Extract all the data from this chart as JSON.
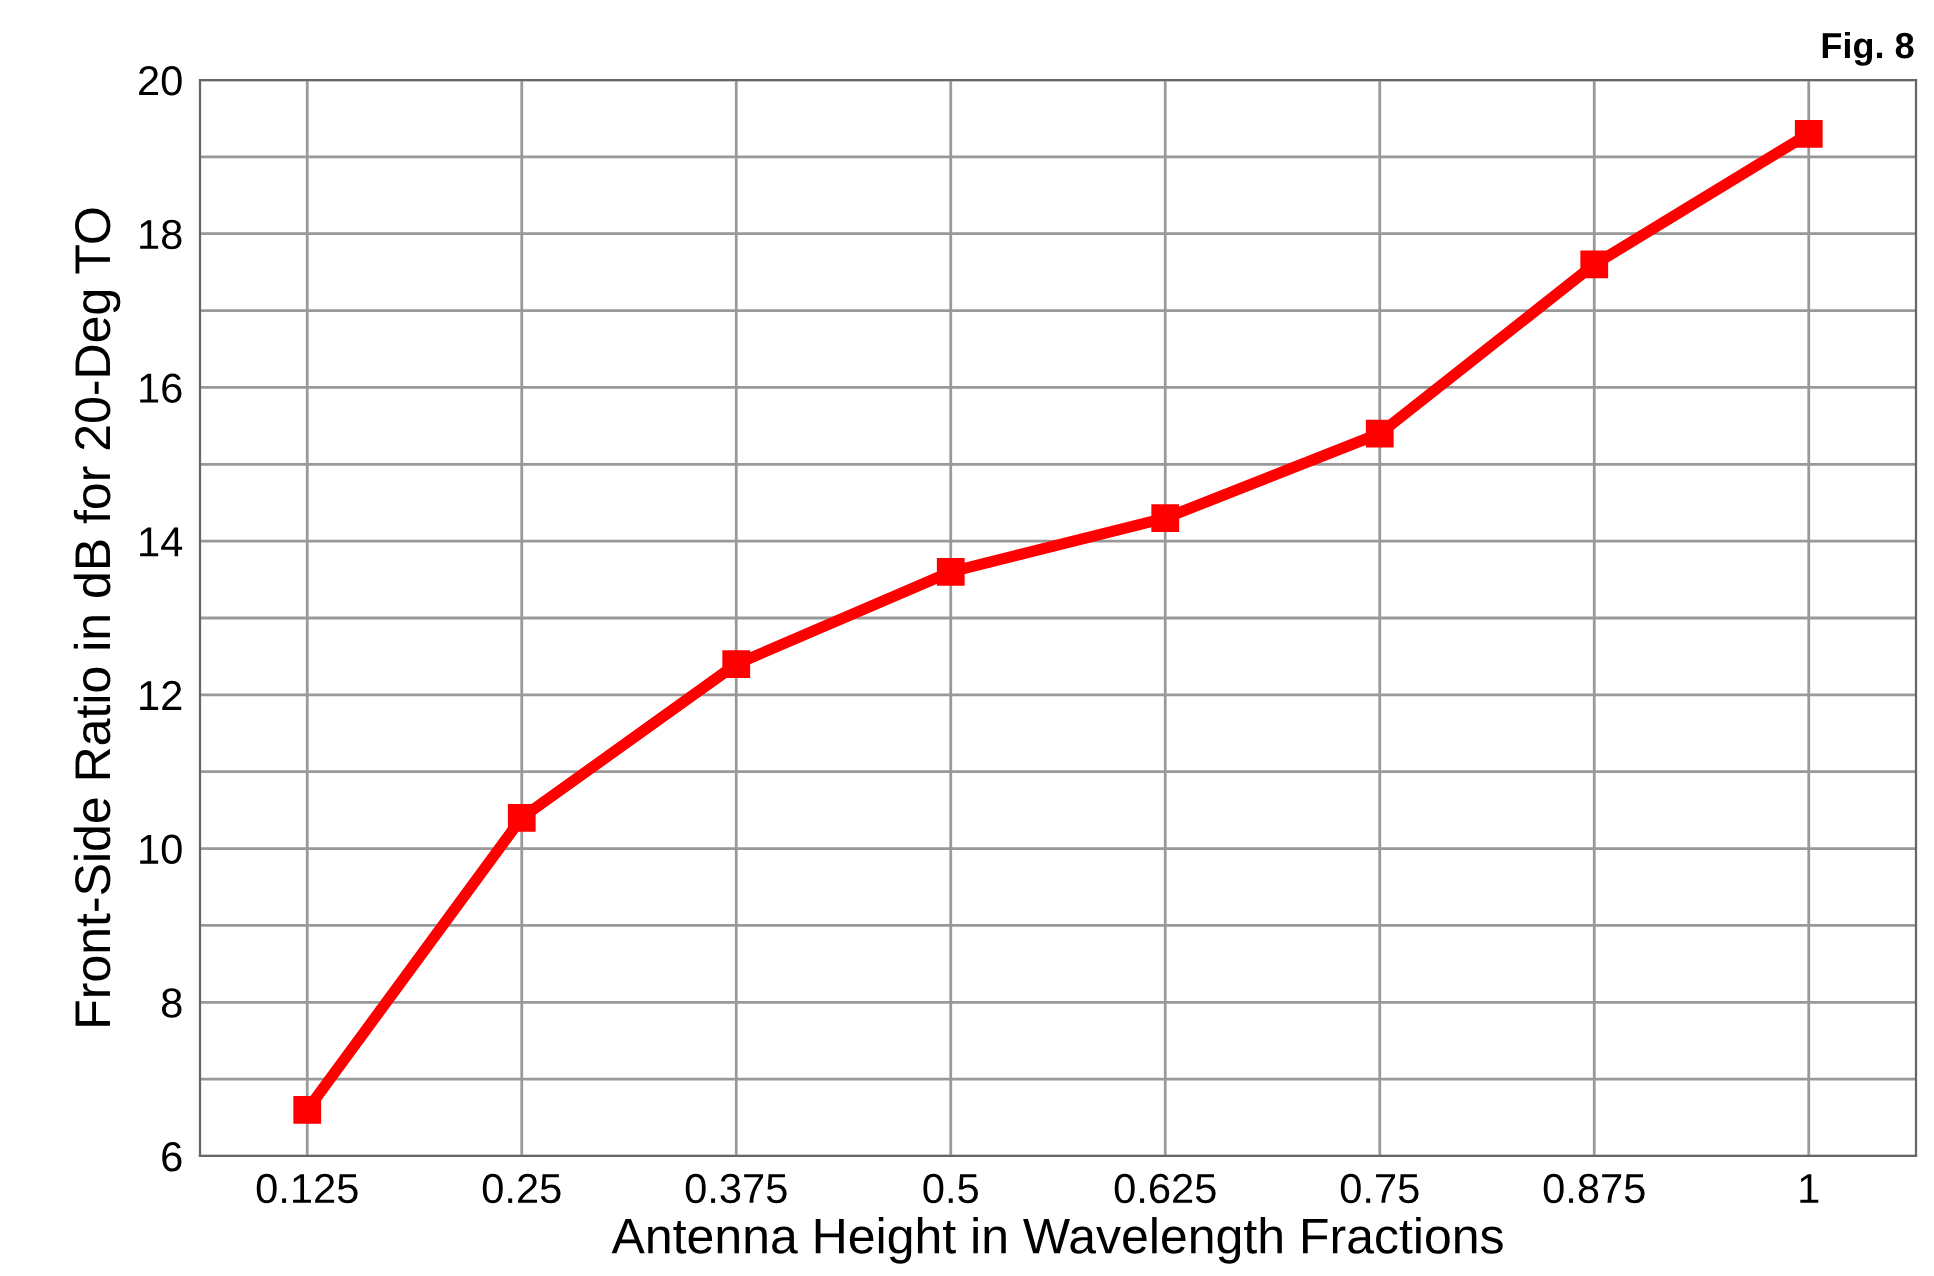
{
  "chart_data": {
    "type": "line",
    "xlabel": "Antenna Height in Wavelength Fractions",
    "ylabel": "Front-Side Ratio in dB for 20-Deg TO",
    "categories": [
      "0.125",
      "0.25",
      "0.375",
      "0.5",
      "0.625",
      "0.75",
      "0.875",
      "1"
    ],
    "series": [
      {
        "color": "#ff0000",
        "values": [
          6.6,
          10.4,
          12.4,
          13.6,
          14.3,
          15.4,
          17.6,
          19.3
        ]
      }
    ],
    "ylim": [
      6,
      20
    ],
    "yticks": [
      6,
      {
        "value": 7,
        "label": null
      },
      8,
      {
        "value": 9,
        "label": null
      },
      10,
      {
        "value": 11,
        "label": null
      },
      12,
      {
        "value": 13,
        "label": null
      },
      14,
      {
        "value": 15,
        "label": null
      },
      16,
      {
        "value": 17,
        "label": null
      },
      18,
      {
        "value": 19,
        "label": null
      },
      20
    ],
    "grid": true,
    "marker": "square",
    "line_style": "solid",
    "annotations": [
      "Fig. 8"
    ]
  }
}
